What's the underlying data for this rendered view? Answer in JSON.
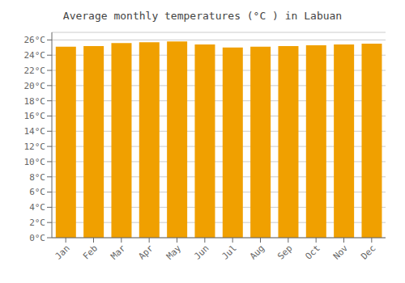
{
  "chart_data": {
    "type": "bar",
    "title": "Average monthly temperatures (°C ) in Labuan",
    "categories": [
      "Jan",
      "Feb",
      "Mar",
      "Apr",
      "May",
      "Jun",
      "Jul",
      "Aug",
      "Sep",
      "Oct",
      "Nov",
      "Dec"
    ],
    "values": [
      25.1,
      25.2,
      25.6,
      25.7,
      25.8,
      25.4,
      25.0,
      25.1,
      25.2,
      25.3,
      25.4,
      25.5
    ],
    "color": "#F0A000",
    "ylim": [
      0,
      27
    ],
    "yticks": [
      {
        "value": 0,
        "label": "0°C"
      },
      {
        "value": 2,
        "label": "2°C"
      },
      {
        "value": 4,
        "label": "4°C"
      },
      {
        "value": 6,
        "label": "6°C"
      },
      {
        "value": 8,
        "label": "8°C"
      },
      {
        "value": 10,
        "label": "10°C"
      },
      {
        "value": 12,
        "label": "12°C"
      },
      {
        "value": 14,
        "label": "14°C"
      },
      {
        "value": 16,
        "label": "16°C"
      },
      {
        "value": 18,
        "label": "18°C"
      },
      {
        "value": 20,
        "label": "20°C"
      },
      {
        "value": 22,
        "label": "22°C"
      },
      {
        "value": 24,
        "label": "24°C"
      },
      {
        "value": 26,
        "label": "26°C"
      }
    ],
    "grid": true
  }
}
